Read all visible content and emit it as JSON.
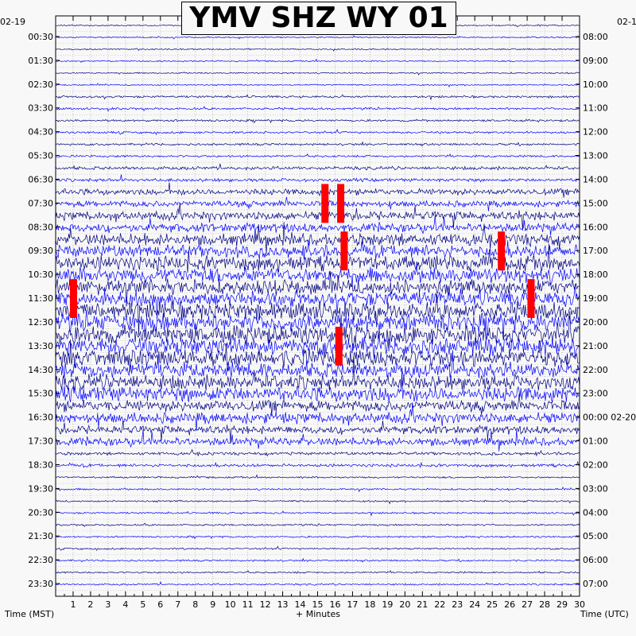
{
  "chart_data": {
    "type": "line",
    "title": "YMV SHZ WY 01",
    "xlabel": "+ Minutes",
    "ylabel_left": "Time (MST)",
    "ylabel_right": "Time (UTC)",
    "date_left": "02-19",
    "date_right_top": "02-1",
    "date_right_change": "02-20",
    "x_ticks": [
      "1",
      "2",
      "3",
      "4",
      "5",
      "6",
      "7",
      "8",
      "9",
      "10",
      "11",
      "12",
      "13",
      "14",
      "15",
      "16",
      "17",
      "18",
      "19",
      "20",
      "21",
      "22",
      "23",
      "24",
      "25",
      "26",
      "27",
      "28",
      "29",
      "30"
    ],
    "xlim": [
      0,
      30
    ],
    "rows_per_hour": 2,
    "row_minutes": 30,
    "left_ticks": [
      "00:30",
      "01:30",
      "02:30",
      "03:30",
      "04:30",
      "05:30",
      "06:30",
      "07:30",
      "08:30",
      "09:30",
      "10:30",
      "11:30",
      "12:30",
      "13:30",
      "14:30",
      "15:30",
      "16:30",
      "17:30",
      "18:30",
      "19:30",
      "20:30",
      "21:30",
      "22:30",
      "23:30"
    ],
    "right_ticks": [
      "08:00",
      "09:00",
      "10:00",
      "11:00",
      "12:00",
      "13:00",
      "14:00",
      "15:00",
      "16:00",
      "17:00",
      "18:00",
      "19:00",
      "20:00",
      "21:00",
      "22:00",
      "23:00",
      "00:00 02-20",
      "01:00",
      "02:00",
      "03:00",
      "04:00",
      "05:00",
      "06:00",
      "07:00"
    ],
    "clip_markers_minutes_by_hour": {
      "7": [
        15.4,
        16.3
      ],
      "9": [
        16.5,
        25.5
      ],
      "11": [
        1.0,
        27.2
      ],
      "13": [
        16.2
      ]
    },
    "grid": true,
    "series_colors": [
      "#000080",
      "#0000ff"
    ],
    "clip_color": "#ff0000"
  }
}
